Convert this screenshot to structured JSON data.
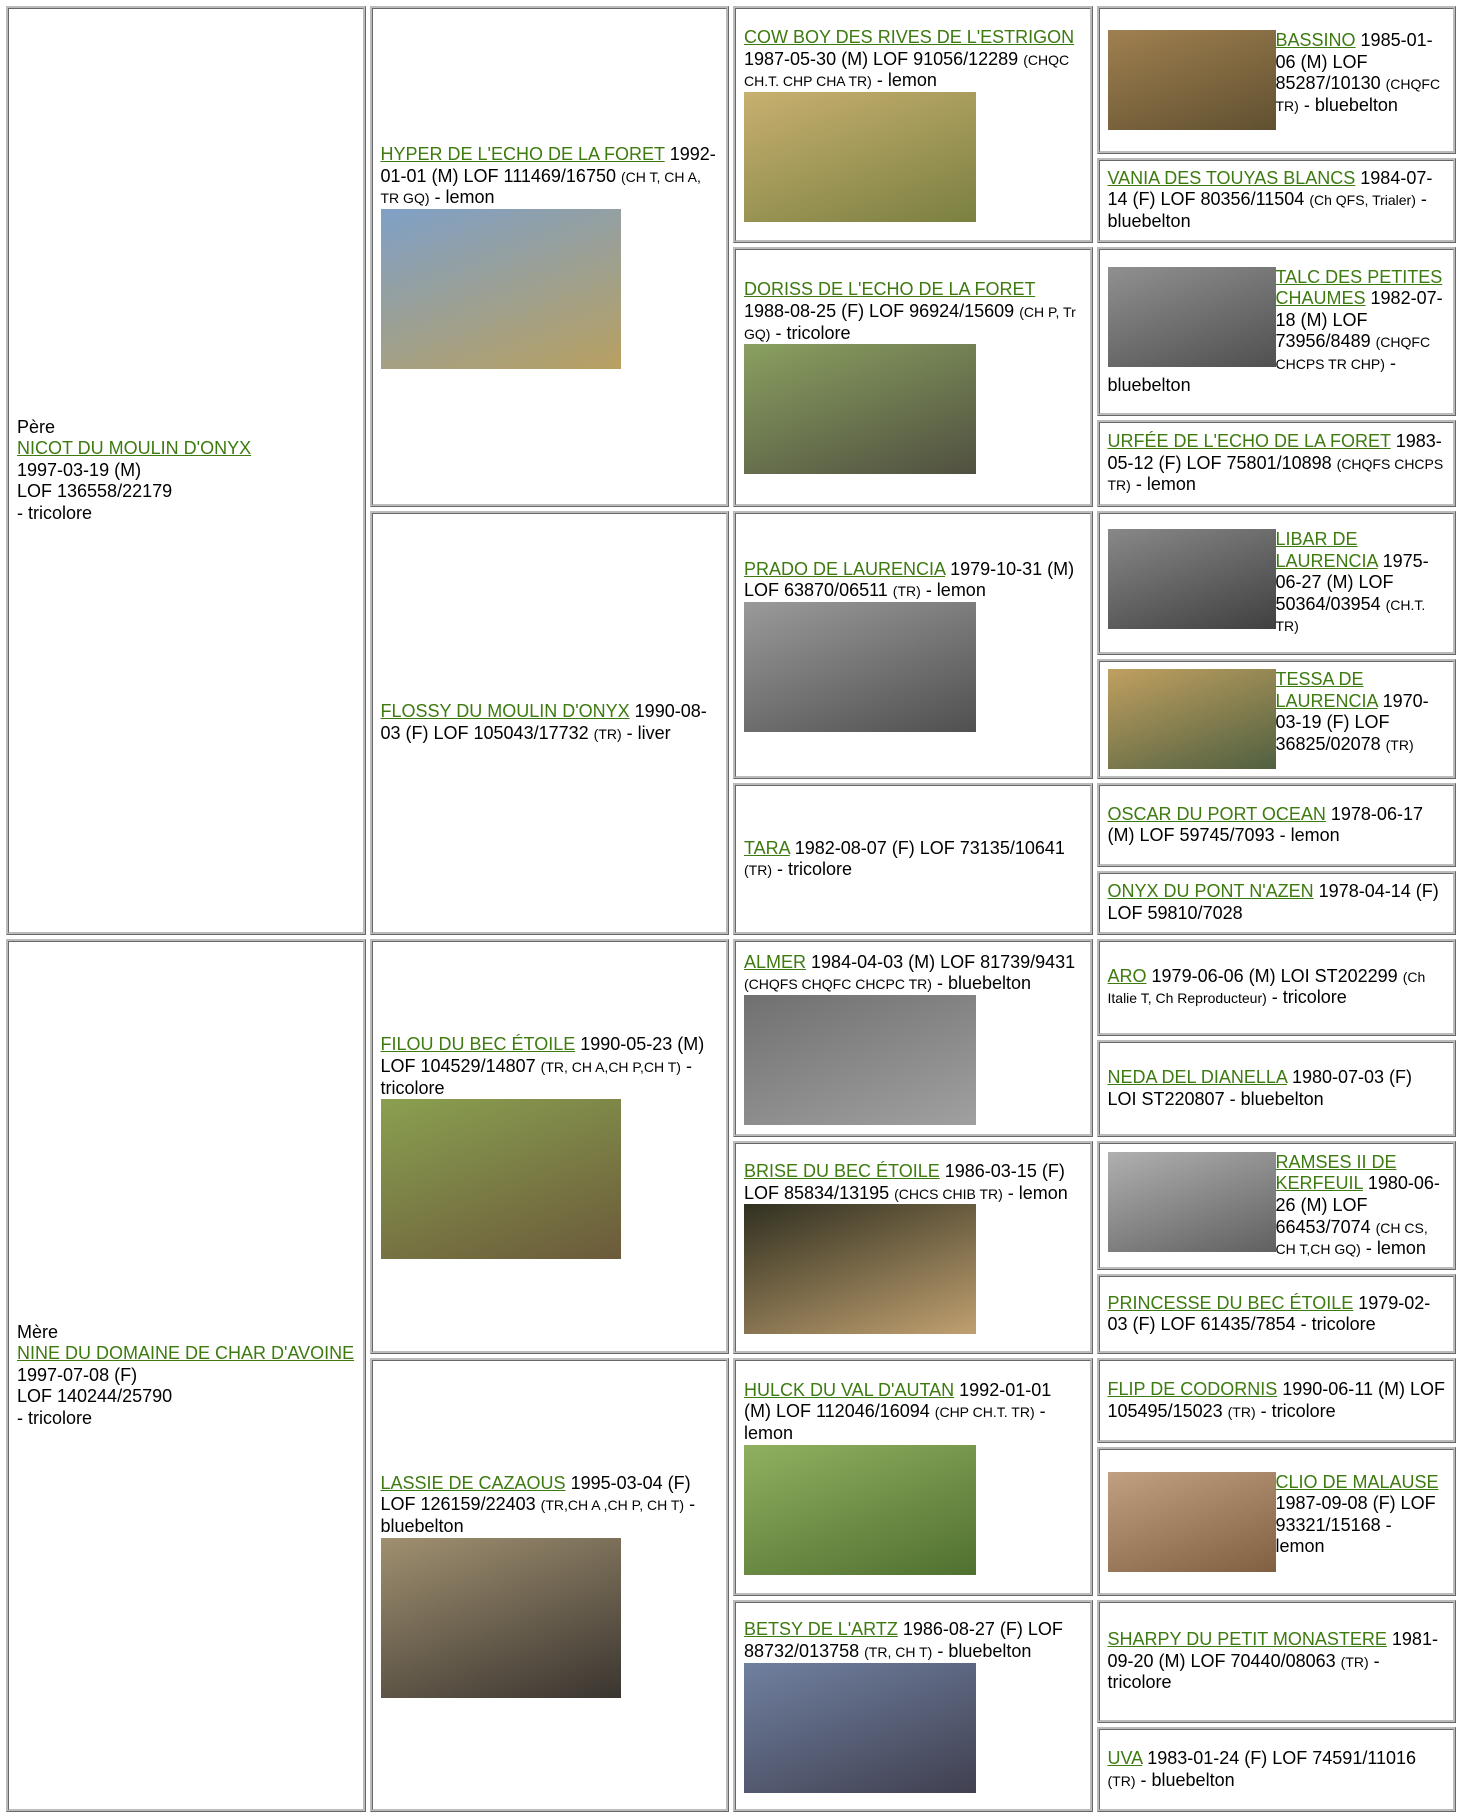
{
  "pedigree": {
    "parents": [
      {
        "role": "Père",
        "name": "NICOT DU MOULIN D'ONYX",
        "lines": [
          "1997-03-19 (M)",
          "LOF 136558/22179",
          "- tricolore"
        ]
      },
      {
        "role": "Mère",
        "name": "NINE DU DOMAINE DE CHAR D'AVOINE",
        "lines": [
          "1997-07-08 (F)",
          "LOF 140244/25790",
          "- tricolore"
        ]
      }
    ],
    "grandparents": [
      {
        "name": "HYPER DE L'ECHO DE LA FORET",
        "info": "1992-01-01 (M) LOF 111469/16750",
        "titles": "(CH T, CH A, TR GQ)",
        "coat": "- lemon"
      },
      {
        "name": "FLOSSY DU MOULIN D'ONYX",
        "info": "1990-08-03 (F) LOF 105043/17732",
        "titles": "(TR)",
        "coat": "- liver"
      },
      {
        "name": "FILOU DU BEC ÉTOILE",
        "info": "1990-05-23 (M) LOF 104529/14807",
        "titles": "(TR, CH A,CH P,CH T)",
        "coat": "- tricolore"
      },
      {
        "name": "LASSIE DE CAZAOUS",
        "info": "1995-03-04 (F) LOF 126159/22403",
        "titles": "(TR,CH A ,CH P, CH T)",
        "coat": "- bluebelton"
      }
    ],
    "great_grandparents": [
      {
        "name": "COW BOY DES RIVES DE L'ESTRIGON",
        "info": "1987-05-30 (M) LOF 91056/12289",
        "titles": "(CHQC CH.T. CHP CHA TR)",
        "coat": "- lemon"
      },
      {
        "name": "DORISS DE L'ECHO DE LA FORET",
        "info": "1988-08-25 (F) LOF 96924/15609",
        "titles": "(CH P, Tr GQ)",
        "coat": "- tricolore"
      },
      {
        "name": "PRADO DE LAURENCIA",
        "info": "1979-10-31 (M) LOF 63870/06511",
        "titles": "(TR)",
        "coat": "- lemon"
      },
      {
        "name": "TARA",
        "info": "1982-08-07 (F) LOF 73135/10641",
        "titles": "(TR)",
        "coat": "- tricolore"
      },
      {
        "name": "ALMER",
        "info": "1984-04-03 (M) LOF 81739/9431",
        "titles": "(CHQFS CHQFC CHCPC TR)",
        "coat": "- bluebelton"
      },
      {
        "name": "BRISE DU BEC ÉTOILE",
        "info": "1986-03-15 (F) LOF 85834/13195",
        "titles": "(CHCS CHIB TR)",
        "coat": "- lemon"
      },
      {
        "name": "HULCK DU VAL D'AUTAN",
        "info": "1992-01-01 (M) LOF 112046/16094",
        "titles": "(CHP CH.T. TR)",
        "coat": "- lemon"
      },
      {
        "name": "BETSY DE L'ARTZ",
        "info": "1986-08-27 (F) LOF 88732/013758",
        "titles": "(TR, CH T)",
        "coat": "- bluebelton"
      }
    ],
    "great_great_grandparents": [
      {
        "name": "BASSINO",
        "info": "1985-01-06 (M) LOF 85287/10130",
        "titles": "(CHQFC TR)",
        "coat": "- bluebelton"
      },
      {
        "name": "VANIA DES TOUYAS BLANCS",
        "info": "1984-07-14 (F) LOF 80356/11504",
        "titles": "(Ch QFS, Trialer)",
        "coat": "- bluebelton"
      },
      {
        "name": "TALC DES PETITES CHAUMES",
        "info": "1982-07-18 (M) LOF 73956/8489",
        "titles": "(CHQFC CHCPS TR CHP)",
        "coat": "- bluebelton"
      },
      {
        "name": "URFÉE DE L'ECHO DE LA FORET",
        "info": "1983-05-12 (F) LOF 75801/10898",
        "titles": "(CHQFS CHCPS TR)",
        "coat": "- lemon"
      },
      {
        "name": "LIBAR DE LAURENCIA",
        "info": "1975-06-27 (M) LOF 50364/03954",
        "titles": "(CH.T. TR)"
      },
      {
        "name": "TESSA DE LAURENCIA",
        "info": "1970-03-19 (F) LOF 36825/02078",
        "titles": "(TR)"
      },
      {
        "name": "OSCAR DU PORT OCEAN",
        "info": "1978-06-17 (M) LOF 59745/7093",
        "coat": "- lemon"
      },
      {
        "name": "ONYX DU PONT N'AZEN",
        "info": "1978-04-14 (F) LOF 59810/7028"
      },
      {
        "name": "ARO",
        "info": "1979-06-06 (M) LOI ST202299",
        "titles": "(Ch Italie T, Ch Reproducteur)",
        "coat": "- tricolore"
      },
      {
        "name": "NEDA DEL DIANELLA",
        "info": "1980-07-03 (F) LOI ST220807",
        "coat": "- bluebelton"
      },
      {
        "name": "RAMSES II DE KERFEUIL",
        "info": "1980-06-26 (M) LOF 66453/7074",
        "titles": "(CH CS, CH T,CH GQ)",
        "coat": "- lemon"
      },
      {
        "name": "PRINCESSE DU BEC ÉTOILE",
        "info": "1979-02-03 (F) LOF 61435/7854",
        "coat": "- tricolore"
      },
      {
        "name": "FLIP DE CODORNIS",
        "info": "1990-06-11 (M) LOF 105495/15023",
        "titles": "(TR)",
        "coat": "- tricolore"
      },
      {
        "name": "CLIO DE MALAUSE",
        "info": "1987-09-08 (F) LOF 93321/15168",
        "coat": "- lemon"
      },
      {
        "name": "SHARPY DU PETIT MONASTERE",
        "info": "1981-09-20 (M) LOF 70440/08063",
        "titles": "(TR)",
        "coat": "- tricolore"
      },
      {
        "name": "UVA",
        "info": "1983-01-24 (F) LOF 74591/11016",
        "titles": "(TR)",
        "coat": "- bluebelton"
      }
    ]
  }
}
